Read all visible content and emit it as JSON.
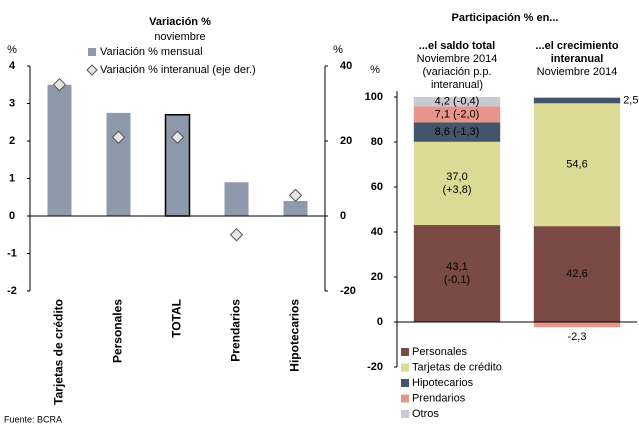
{
  "source": "Fuente: BCRA",
  "chart_data": [
    {
      "type": "bar",
      "title": "Variación %",
      "subtitle": "noviembre",
      "y_unit": "%",
      "y2_unit": "%",
      "categories": [
        "Tarjetas de crédito",
        "Personales",
        "TOTAL",
        "Prendarios",
        "Hipotecarios"
      ],
      "series": [
        {
          "name": "Variación % mensual",
          "type": "bar",
          "color": "#8e9aab",
          "values": [
            3.5,
            2.75,
            2.7,
            0.9,
            0.4
          ]
        },
        {
          "name": "Variación % interanual (eje der.)",
          "type": "scatter",
          "axis": "y2",
          "color": "#e6e6e6",
          "values": [
            35,
            21,
            21,
            -5,
            5.5
          ]
        }
      ],
      "ylim": [
        -2,
        4
      ],
      "yticks": [
        -2,
        -1,
        0,
        1,
        2,
        3,
        4
      ],
      "y2lim": [
        -20,
        40
      ],
      "y2ticks": [
        -20,
        0,
        20,
        40
      ],
      "highlight_index": 2,
      "legend": "top"
    },
    {
      "type": "stacked_bar",
      "title": "Participación % en...",
      "y_unit": "%",
      "categories": [
        "...el saldo total",
        "...el crecimiento interanual"
      ],
      "category_notes": [
        [
          "Noviembre 2014",
          "(variación p.p. interanual)"
        ],
        [
          "Noviembre 2014"
        ]
      ],
      "series": [
        {
          "name": "Personales",
          "color": "#7b4a44",
          "values": [
            43.1,
            42.6
          ],
          "value_labels": [
            "43,1\n(-0,1)",
            "42,6"
          ]
        },
        {
          "name": "Tarjetas de crédito",
          "color": "#dcdb95",
          "values": [
            37.0,
            54.6
          ],
          "value_labels": [
            "37,0\n(+3,8)",
            "54,6"
          ]
        },
        {
          "name": "Hipotecarios",
          "color": "#44546a",
          "values": [
            8.6,
            2.5
          ],
          "value_labels": [
            "8,6 (-1,3)",
            "2,5"
          ]
        },
        {
          "name": "Prendarios",
          "color": "#e9948a",
          "values": [
            7.1,
            -2.3
          ],
          "value_labels": [
            "7,1 (-2,0)",
            "-2,3"
          ]
        },
        {
          "name": "Otros",
          "color": "#c9cad3",
          "values": [
            4.2,
            null
          ],
          "value_labels": [
            "4,2 (-0,4)",
            null
          ]
        }
      ],
      "ylim": [
        -20,
        100
      ],
      "yticks": [
        -20,
        0,
        20,
        40,
        60,
        80,
        100
      ],
      "legend": "bottom-left"
    }
  ]
}
